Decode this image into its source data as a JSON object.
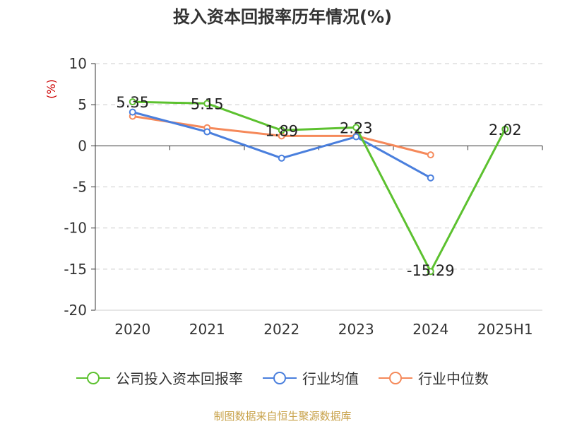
{
  "chart_data": {
    "type": "line",
    "title": "投入资本回报率历年情况(%)",
    "ylabel": "(%)",
    "categories": [
      "2020",
      "2021",
      "2022",
      "2023",
      "2024",
      "2025H1"
    ],
    "ylim": [
      -20,
      10
    ],
    "yticks": [
      10,
      5,
      0,
      -5,
      -10,
      -15,
      -20
    ],
    "grid": true,
    "legend_position": "bottom",
    "series": [
      {
        "name": "公司投入资本回报率",
        "color": "#5cc12f",
        "values": [
          5.35,
          5.15,
          1.89,
          2.23,
          -15.29,
          2.02
        ],
        "labels": [
          "5.35",
          "5.15",
          "1.89",
          "2.23",
          "-15.29",
          "2.02"
        ]
      },
      {
        "name": "行业均值",
        "color": "#4a7fdd",
        "values": [
          4.1,
          1.7,
          -1.5,
          1.1,
          -3.9,
          null
        ]
      },
      {
        "name": "行业中位数",
        "color": "#f5895a",
        "values": [
          3.6,
          2.2,
          1.2,
          1.2,
          -1.1,
          null
        ]
      }
    ]
  },
  "source": "制图数据来自恒生聚源数据库"
}
